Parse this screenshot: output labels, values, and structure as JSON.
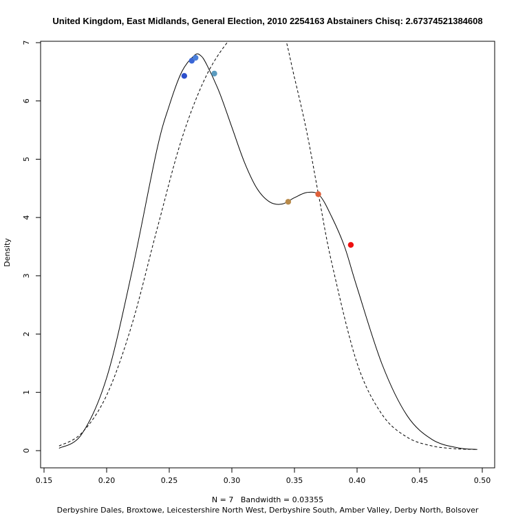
{
  "chart_data": {
    "type": "line",
    "title": "United Kingdom, East Midlands, General Election, 2010 2254163 Abstainers Chisq: 2.67374521384608",
    "xlabel": "N = 7   Bandwidth = 0.03355",
    "subtitle": "Derbyshire Dales, Broxtowe, Leicestershire North West, Derbyshire South, Amber Valley, Derby North, Bolsover",
    "ylabel": "Density",
    "xlim": [
      0.15,
      0.5
    ],
    "ylim": [
      0,
      7
    ],
    "x_ticks": [
      "0.15",
      "0.20",
      "0.25",
      "0.30",
      "0.35",
      "0.40",
      "0.45",
      "0.50"
    ],
    "y_ticks": [
      "0",
      "1",
      "2",
      "3",
      "4",
      "5",
      "6",
      "7"
    ],
    "grid": false,
    "series": [
      {
        "style": "solid",
        "x": [
          0.162,
          0.18,
          0.2,
          0.22,
          0.24,
          0.25,
          0.26,
          0.27,
          0.275,
          0.28,
          0.29,
          0.3,
          0.31,
          0.32,
          0.33,
          0.34,
          0.35,
          0.36,
          0.37,
          0.38,
          0.39,
          0.4,
          0.42,
          0.44,
          0.46,
          0.48,
          0.496
        ],
        "y": [
          0.04,
          0.28,
          1.25,
          3.05,
          5.15,
          5.92,
          6.5,
          6.78,
          6.78,
          6.62,
          6.15,
          5.55,
          4.95,
          4.5,
          4.27,
          4.23,
          4.34,
          4.43,
          4.38,
          4.0,
          3.5,
          2.8,
          1.48,
          0.6,
          0.19,
          0.05,
          0.02
        ]
      },
      {
        "style": "dashed",
        "x": [
          0.162,
          0.18,
          0.2,
          0.22,
          0.24,
          0.26,
          0.28,
          0.3,
          0.31,
          0.32,
          0.33,
          0.34,
          0.35,
          0.36,
          0.37,
          0.38,
          0.4,
          0.42,
          0.44,
          0.46,
          0.48,
          0.496
        ],
        "y": [
          0.08,
          0.3,
          0.95,
          2.15,
          3.78,
          5.35,
          6.45,
          7.1,
          7.22,
          7.27,
          7.27,
          7.25,
          6.4,
          5.45,
          4.3,
          3.2,
          1.5,
          0.62,
          0.23,
          0.08,
          0.03,
          0.02
        ]
      }
    ],
    "points": [
      {
        "x": 0.262,
        "y": 6.43,
        "color": "#2c4fcc"
      },
      {
        "x": 0.268,
        "y": 6.69,
        "color": "#3a66d6"
      },
      {
        "x": 0.271,
        "y": 6.74,
        "color": "#4a7fd9"
      },
      {
        "x": 0.286,
        "y": 6.47,
        "color": "#5b9bbf"
      },
      {
        "x": 0.345,
        "y": 4.27,
        "color": "#b88a4a"
      },
      {
        "x": 0.369,
        "y": 4.4,
        "color": "#e0603a"
      },
      {
        "x": 0.395,
        "y": 3.53,
        "color": "#ee1111"
      }
    ]
  }
}
